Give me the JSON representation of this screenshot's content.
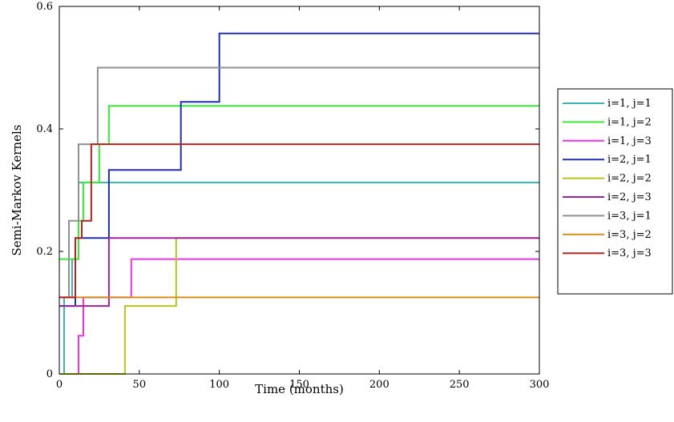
{
  "chart_data": {
    "type": "line",
    "step": true,
    "xlabel": "Time (months)",
    "ylabel": "Semi-Markov Kernels",
    "xlim": [
      0,
      300
    ],
    "ylim": [
      0,
      0.6
    ],
    "xticks": [
      0,
      50,
      100,
      150,
      200,
      250,
      300
    ],
    "yticks": [
      0,
      0.2,
      0.4,
      0.6
    ],
    "xtick_labels": [
      "0",
      "50",
      "100",
      "150",
      "200",
      "250",
      "300"
    ],
    "ytick_labels": [
      "0",
      "0.2",
      "0.4",
      "0.6"
    ],
    "grid": false,
    "legend_position": "outside-right",
    "series": [
      {
        "name": "i=1, j=1",
        "color": "#3cb4b4",
        "x": [
          0,
          3,
          3,
          8,
          8,
          12,
          12,
          300
        ],
        "y": [
          0,
          0,
          0.125,
          0.125,
          0.1875,
          0.1875,
          0.3125,
          0.3125
        ]
      },
      {
        "name": "i=1, j=2",
        "color": "#33ee33",
        "x": [
          0,
          12,
          12,
          15,
          15,
          25,
          25,
          31,
          31,
          300
        ],
        "y": [
          0.1875,
          0.1875,
          0.25,
          0.25,
          0.3125,
          0.3125,
          0.375,
          0.375,
          0.4375,
          0.4375
        ]
      },
      {
        "name": "i=1, j=3",
        "color": "#ee33ee",
        "x": [
          0,
          12,
          12,
          15,
          15,
          45,
          45,
          300
        ],
        "y": [
          0,
          0,
          0.0625,
          0.0625,
          0.125,
          0.125,
          0.1875,
          0.1875
        ]
      },
      {
        "name": "i=2, j=1",
        "color": "#1f2fb0",
        "x": [
          0,
          10,
          10,
          31,
          31,
          76,
          76,
          100,
          100,
          300
        ],
        "y": [
          0.111,
          0.111,
          0.222,
          0.222,
          0.333,
          0.333,
          0.444,
          0.444,
          0.556,
          0.556
        ]
      },
      {
        "name": "i=2, j=2",
        "color": "#b8c41a",
        "x": [
          0,
          41,
          41,
          73,
          73,
          300
        ],
        "y": [
          0,
          0,
          0.111,
          0.111,
          0.222,
          0.222
        ]
      },
      {
        "name": "i=2, j=3",
        "color": "#a020a0",
        "x": [
          0,
          31,
          31,
          300
        ],
        "y": [
          0.111,
          0.111,
          0.222,
          0.222
        ]
      },
      {
        "name": "i=3, j=1",
        "color": "#909090",
        "x": [
          0,
          6,
          6,
          12,
          12,
          18,
          18,
          24,
          24,
          300
        ],
        "y": [
          0.125,
          0.125,
          0.25,
          0.25,
          0.375,
          0.375,
          0.375,
          0.375,
          0.5,
          0.5
        ]
      },
      {
        "name": "i=3, j=2",
        "color": "#d98a1a",
        "x": [
          0,
          300
        ],
        "y": [
          0.125,
          0.125
        ]
      },
      {
        "name": "i=3, j=3",
        "color": "#c02020",
        "x": [
          0,
          10,
          10,
          14,
          14,
          20,
          20,
          22,
          22,
          300
        ],
        "y": [
          0.125,
          0.125,
          0.222,
          0.222,
          0.25,
          0.25,
          0.375,
          0.375,
          0.375,
          0.375
        ]
      }
    ]
  }
}
